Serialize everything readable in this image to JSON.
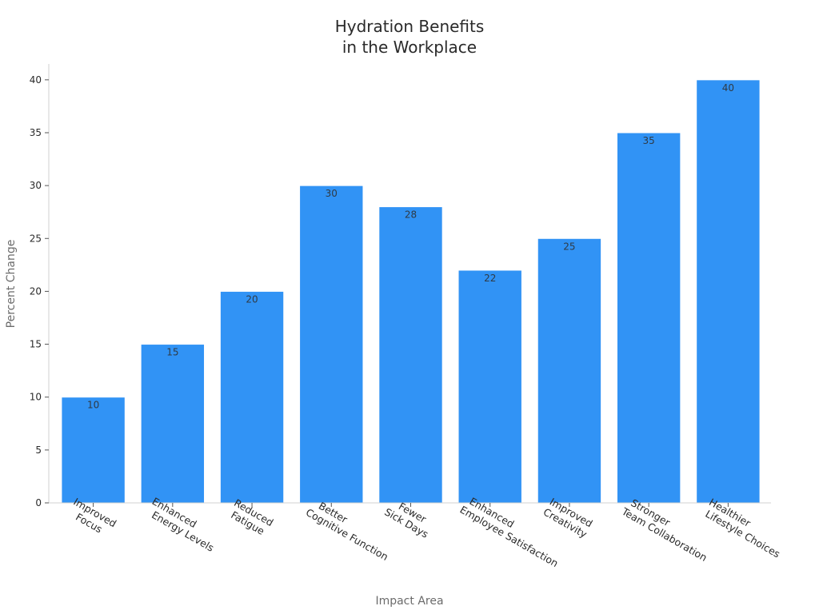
{
  "chart_data": {
    "type": "bar",
    "title": [
      "Hydration Benefits",
      "in the Workplace"
    ],
    "xlabel": "Impact Area",
    "ylabel": "Percent Change",
    "categories": [
      [
        "Improved",
        "Focus"
      ],
      [
        "Enhanced",
        "Energy Levels"
      ],
      [
        "Reduced",
        "Fatigue"
      ],
      [
        "Better",
        "Cognitive Function"
      ],
      [
        "Fewer",
        "Sick Days"
      ],
      [
        "Enhanced",
        "Employee Satisfaction"
      ],
      [
        "Improved",
        "Creativity"
      ],
      [
        "Stronger",
        "Team Collaboration"
      ],
      [
        "Healthier",
        "Lifestyle Choices"
      ]
    ],
    "values": [
      10,
      15,
      20,
      30,
      28,
      22,
      25,
      35,
      40
    ],
    "ylim": [
      0,
      42
    ],
    "yticks": [
      0,
      5,
      10,
      15,
      20,
      25,
      30,
      35,
      40
    ],
    "bar_color": "#3193f5",
    "grid": false,
    "data_labels": true
  }
}
